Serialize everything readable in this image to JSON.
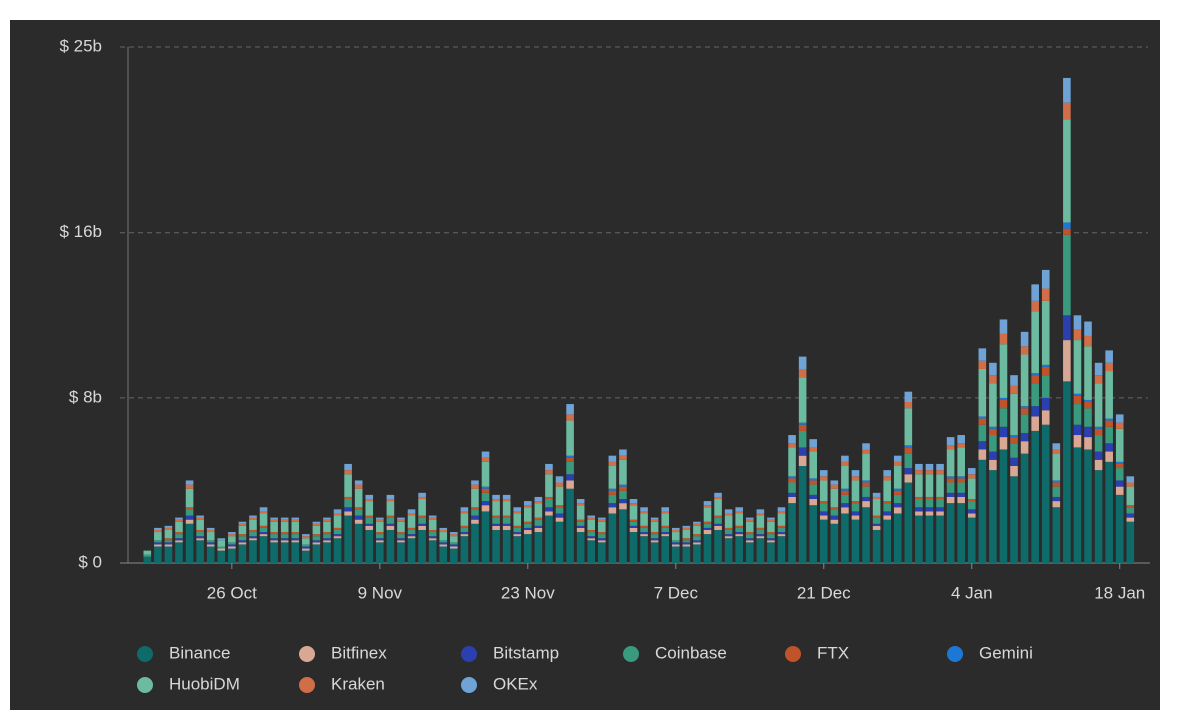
{
  "chart_data": {
    "type": "stacked_bar",
    "categories": [
      null,
      null,
      null,
      null,
      null,
      null,
      null,
      null,
      "26 Oct",
      null,
      null,
      null,
      null,
      null,
      null,
      null,
      null,
      null,
      null,
      null,
      null,
      null,
      "9 Nov",
      null,
      null,
      null,
      null,
      null,
      null,
      null,
      null,
      null,
      null,
      null,
      null,
      null,
      "23 Nov",
      null,
      null,
      null,
      null,
      null,
      null,
      null,
      null,
      null,
      null,
      null,
      null,
      null,
      "7 Dec",
      null,
      null,
      null,
      null,
      null,
      null,
      null,
      null,
      null,
      null,
      null,
      null,
      null,
      "21 Dec",
      null,
      null,
      null,
      null,
      null,
      null,
      null,
      null,
      null,
      null,
      null,
      null,
      null,
      "4 Jan",
      null,
      null,
      null,
      null,
      null,
      null,
      null,
      null,
      null,
      null,
      null,
      null,
      null,
      "18 Jan",
      null
    ],
    "ylim": [
      0,
      25
    ],
    "yticks": [
      {
        "value": 0,
        "label": "$ 0"
      },
      {
        "value": 8,
        "label": "$ 8b"
      },
      {
        "value": 16,
        "label": "$ 16b"
      },
      {
        "value": 25,
        "label": "$ 25b"
      }
    ],
    "grid": true,
    "series": [
      {
        "name": "Binance",
        "color": "#0f6a6a",
        "values": [
          0.3,
          0.8,
          0.8,
          1.0,
          1.9,
          1.1,
          0.8,
          0.6,
          0.7,
          0.9,
          1.1,
          1.3,
          1.0,
          1.0,
          1.0,
          0.6,
          0.9,
          1.0,
          1.2,
          2.3,
          1.9,
          1.6,
          1.0,
          1.6,
          1.0,
          1.2,
          1.6,
          1.1,
          0.8,
          0.7,
          1.3,
          1.9,
          2.5,
          1.6,
          1.6,
          1.3,
          1.4,
          1.5,
          2.3,
          2.0,
          3.6,
          1.5,
          1.1,
          1.0,
          2.4,
          2.6,
          1.5,
          1.3,
          1.0,
          1.3,
          0.8,
          0.8,
          0.9,
          1.4,
          1.6,
          1.2,
          1.3,
          1.0,
          1.2,
          1.0,
          1.3,
          2.9,
          4.7,
          2.8,
          2.1,
          1.9,
          2.4,
          2.1,
          2.7,
          1.6,
          2.1,
          2.4,
          3.9,
          2.3,
          2.3,
          2.3,
          2.9,
          2.9,
          2.2,
          5.0,
          4.5,
          5.5,
          4.2,
          5.3,
          6.4,
          6.7,
          2.7,
          8.8,
          5.6,
          5.5,
          4.5,
          4.9,
          3.3,
          2.0
        ]
      },
      {
        "name": "Bitfinex",
        "color": "#d9a894",
        "values": [
          0.0,
          0.1,
          0.1,
          0.1,
          0.2,
          0.1,
          0.1,
          0.1,
          0.1,
          0.1,
          0.1,
          0.1,
          0.1,
          0.1,
          0.1,
          0.1,
          0.1,
          0.1,
          0.1,
          0.2,
          0.2,
          0.2,
          0.1,
          0.2,
          0.1,
          0.1,
          0.2,
          0.1,
          0.1,
          0.1,
          0.1,
          0.2,
          0.3,
          0.2,
          0.2,
          0.1,
          0.2,
          0.2,
          0.2,
          0.2,
          0.4,
          0.2,
          0.1,
          0.1,
          0.3,
          0.3,
          0.2,
          0.1,
          0.1,
          0.1,
          0.1,
          0.1,
          0.1,
          0.2,
          0.2,
          0.1,
          0.1,
          0.1,
          0.1,
          0.1,
          0.1,
          0.3,
          0.5,
          0.3,
          0.2,
          0.2,
          0.3,
          0.2,
          0.3,
          0.2,
          0.2,
          0.3,
          0.4,
          0.2,
          0.2,
          0.2,
          0.3,
          0.3,
          0.2,
          0.5,
          0.5,
          0.6,
          0.5,
          0.6,
          0.7,
          0.7,
          0.3,
          2.0,
          0.6,
          0.6,
          0.5,
          0.5,
          0.4,
          0.2
        ]
      },
      {
        "name": "Bitstamp",
        "color": "#2a40b0",
        "values": [
          0.0,
          0.1,
          0.1,
          0.1,
          0.2,
          0.1,
          0.1,
          0.0,
          0.1,
          0.1,
          0.1,
          0.1,
          0.1,
          0.1,
          0.1,
          0.1,
          0.1,
          0.1,
          0.1,
          0.2,
          0.2,
          0.1,
          0.1,
          0.1,
          0.1,
          0.1,
          0.1,
          0.1,
          0.1,
          0.1,
          0.1,
          0.2,
          0.2,
          0.1,
          0.1,
          0.1,
          0.1,
          0.1,
          0.2,
          0.2,
          0.3,
          0.1,
          0.1,
          0.1,
          0.2,
          0.2,
          0.1,
          0.1,
          0.1,
          0.1,
          0.1,
          0.1,
          0.1,
          0.1,
          0.1,
          0.1,
          0.1,
          0.1,
          0.1,
          0.1,
          0.1,
          0.2,
          0.4,
          0.2,
          0.2,
          0.2,
          0.2,
          0.2,
          0.2,
          0.1,
          0.2,
          0.2,
          0.3,
          0.2,
          0.2,
          0.2,
          0.2,
          0.2,
          0.2,
          0.4,
          0.4,
          0.5,
          0.4,
          0.4,
          0.5,
          0.6,
          0.2,
          1.2,
          0.5,
          0.5,
          0.4,
          0.4,
          0.3,
          0.2
        ]
      },
      {
        "name": "Coinbase",
        "color": "#3a9a7e",
        "values": [
          0.1,
          0.1,
          0.1,
          0.2,
          0.3,
          0.2,
          0.1,
          0.1,
          0.1,
          0.2,
          0.2,
          0.2,
          0.2,
          0.2,
          0.2,
          0.1,
          0.2,
          0.2,
          0.2,
          0.4,
          0.3,
          0.3,
          0.2,
          0.3,
          0.2,
          0.2,
          0.3,
          0.2,
          0.1,
          0.1,
          0.2,
          0.3,
          0.4,
          0.3,
          0.3,
          0.2,
          0.2,
          0.3,
          0.4,
          0.3,
          0.6,
          0.2,
          0.2,
          0.2,
          0.4,
          0.4,
          0.2,
          0.2,
          0.2,
          0.2,
          0.1,
          0.1,
          0.2,
          0.2,
          0.3,
          0.2,
          0.2,
          0.2,
          0.2,
          0.2,
          0.2,
          0.5,
          0.8,
          0.5,
          0.4,
          0.3,
          0.4,
          0.4,
          0.5,
          0.3,
          0.4,
          0.4,
          0.7,
          0.4,
          0.4,
          0.4,
          0.5,
          0.5,
          0.4,
          0.8,
          0.8,
          0.9,
          0.7,
          0.9,
          1.1,
          1.1,
          0.5,
          3.9,
          1.0,
          0.9,
          0.8,
          0.8,
          0.6,
          0.3
        ]
      },
      {
        "name": "FTX",
        "color": "#c0532a",
        "values": [
          0.0,
          0.0,
          0.1,
          0.1,
          0.1,
          0.1,
          0.0,
          0.0,
          0.0,
          0.1,
          0.1,
          0.1,
          0.1,
          0.1,
          0.1,
          0.0,
          0.1,
          0.1,
          0.1,
          0.1,
          0.1,
          0.1,
          0.1,
          0.1,
          0.1,
          0.1,
          0.1,
          0.1,
          0.0,
          0.0,
          0.1,
          0.1,
          0.2,
          0.1,
          0.1,
          0.1,
          0.1,
          0.1,
          0.1,
          0.1,
          0.2,
          0.1,
          0.1,
          0.1,
          0.2,
          0.2,
          0.1,
          0.1,
          0.1,
          0.1,
          0.0,
          0.1,
          0.1,
          0.1,
          0.1,
          0.1,
          0.1,
          0.1,
          0.1,
          0.1,
          0.1,
          0.2,
          0.3,
          0.2,
          0.1,
          0.1,
          0.2,
          0.1,
          0.2,
          0.1,
          0.1,
          0.2,
          0.3,
          0.1,
          0.1,
          0.1,
          0.2,
          0.2,
          0.1,
          0.3,
          0.3,
          0.4,
          0.3,
          0.3,
          0.4,
          0.4,
          0.2,
          0.3,
          0.4,
          0.3,
          0.3,
          0.3,
          0.2,
          0.1
        ]
      },
      {
        "name": "Gemini",
        "color": "#1c78d4",
        "values": [
          0.0,
          0.0,
          0.0,
          0.0,
          0.0,
          0.0,
          0.0,
          0.0,
          0.0,
          0.0,
          0.0,
          0.0,
          0.0,
          0.0,
          0.0,
          0.0,
          0.0,
          0.0,
          0.0,
          0.0,
          0.0,
          0.0,
          0.0,
          0.0,
          0.0,
          0.0,
          0.0,
          0.0,
          0.0,
          0.0,
          0.0,
          0.0,
          0.1,
          0.0,
          0.0,
          0.0,
          0.0,
          0.0,
          0.0,
          0.0,
          0.1,
          0.0,
          0.0,
          0.0,
          0.1,
          0.1,
          0.0,
          0.0,
          0.0,
          0.0,
          0.0,
          0.0,
          0.0,
          0.0,
          0.0,
          0.0,
          0.0,
          0.0,
          0.0,
          0.0,
          0.0,
          0.1,
          0.1,
          0.1,
          0.0,
          0.0,
          0.1,
          0.0,
          0.1,
          0.0,
          0.0,
          0.1,
          0.1,
          0.0,
          0.0,
          0.0,
          0.1,
          0.1,
          0.0,
          0.1,
          0.1,
          0.1,
          0.1,
          0.1,
          0.1,
          0.1,
          0.1,
          0.3,
          0.1,
          0.1,
          0.1,
          0.1,
          0.1,
          0.0
        ]
      },
      {
        "name": "HuobiDM",
        "color": "#6cbba0",
        "values": [
          0.2,
          0.4,
          0.4,
          0.5,
          0.9,
          0.5,
          0.4,
          0.3,
          0.3,
          0.4,
          0.5,
          0.6,
          0.5,
          0.5,
          0.5,
          0.3,
          0.4,
          0.5,
          0.6,
          1.1,
          0.9,
          0.7,
          0.5,
          0.7,
          0.5,
          0.6,
          0.8,
          0.5,
          0.4,
          0.3,
          0.6,
          0.9,
          1.2,
          0.7,
          0.7,
          0.6,
          0.7,
          0.7,
          1.1,
          0.9,
          1.7,
          0.7,
          0.5,
          0.5,
          1.1,
          1.2,
          0.7,
          0.6,
          0.5,
          0.6,
          0.4,
          0.4,
          0.4,
          0.7,
          0.8,
          0.6,
          0.6,
          0.5,
          0.6,
          0.5,
          0.6,
          1.4,
          2.2,
          1.3,
          1.0,
          0.9,
          1.1,
          1.0,
          1.3,
          0.8,
          1.0,
          1.1,
          1.8,
          1.1,
          1.1,
          1.1,
          1.3,
          1.4,
          1.0,
          2.3,
          2.1,
          2.6,
          2.0,
          2.5,
          3.0,
          3.1,
          1.3,
          5.0,
          2.6,
          2.6,
          2.1,
          2.3,
          1.6,
          0.9
        ]
      },
      {
        "name": "Kraken",
        "color": "#d06e47",
        "values": [
          0.0,
          0.1,
          0.1,
          0.1,
          0.2,
          0.1,
          0.1,
          0.0,
          0.1,
          0.1,
          0.1,
          0.1,
          0.1,
          0.1,
          0.1,
          0.1,
          0.1,
          0.1,
          0.1,
          0.2,
          0.2,
          0.1,
          0.1,
          0.1,
          0.1,
          0.1,
          0.1,
          0.1,
          0.1,
          0.1,
          0.1,
          0.2,
          0.2,
          0.1,
          0.1,
          0.1,
          0.1,
          0.1,
          0.2,
          0.2,
          0.3,
          0.1,
          0.1,
          0.1,
          0.2,
          0.2,
          0.1,
          0.1,
          0.1,
          0.1,
          0.1,
          0.1,
          0.1,
          0.1,
          0.1,
          0.1,
          0.1,
          0.1,
          0.1,
          0.1,
          0.1,
          0.2,
          0.4,
          0.2,
          0.2,
          0.2,
          0.2,
          0.2,
          0.2,
          0.1,
          0.2,
          0.2,
          0.3,
          0.2,
          0.2,
          0.2,
          0.2,
          0.2,
          0.2,
          0.4,
          0.4,
          0.5,
          0.4,
          0.4,
          0.5,
          0.6,
          0.2,
          0.8,
          0.5,
          0.5,
          0.4,
          0.4,
          0.3,
          0.2
        ]
      },
      {
        "name": "OKEx",
        "color": "#6fa3d6",
        "values": [
          0.0,
          0.1,
          0.1,
          0.1,
          0.2,
          0.1,
          0.1,
          0.1,
          0.1,
          0.1,
          0.1,
          0.2,
          0.1,
          0.1,
          0.1,
          0.1,
          0.1,
          0.1,
          0.2,
          0.3,
          0.2,
          0.2,
          0.1,
          0.2,
          0.1,
          0.2,
          0.2,
          0.1,
          0.1,
          0.1,
          0.2,
          0.2,
          0.3,
          0.2,
          0.2,
          0.2,
          0.2,
          0.2,
          0.3,
          0.3,
          0.5,
          0.2,
          0.1,
          0.1,
          0.3,
          0.3,
          0.2,
          0.2,
          0.1,
          0.2,
          0.1,
          0.1,
          0.1,
          0.2,
          0.2,
          0.2,
          0.2,
          0.1,
          0.2,
          0.1,
          0.2,
          0.4,
          0.6,
          0.4,
          0.3,
          0.2,
          0.3,
          0.3,
          0.3,
          0.2,
          0.3,
          0.3,
          0.5,
          0.3,
          0.3,
          0.3,
          0.4,
          0.4,
          0.3,
          0.6,
          0.6,
          0.7,
          0.5,
          0.7,
          0.8,
          0.9,
          0.3,
          1.2,
          0.7,
          0.7,
          0.6,
          0.6,
          0.4,
          0.3
        ]
      }
    ]
  }
}
